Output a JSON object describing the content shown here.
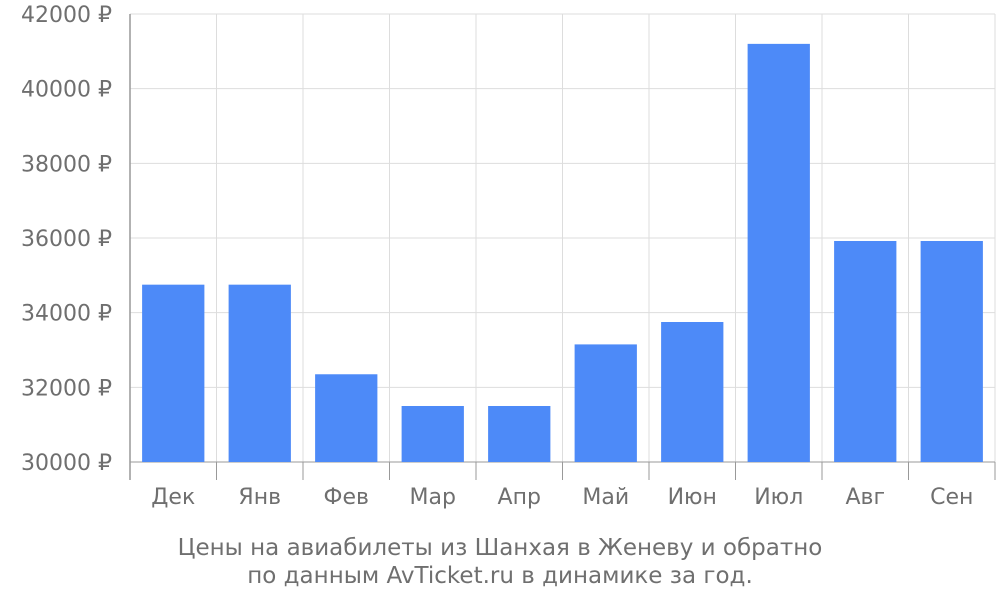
{
  "chart_data": {
    "type": "bar",
    "categories": [
      "Дек",
      "Янв",
      "Фев",
      "Мар",
      "Апр",
      "Май",
      "Июн",
      "Июл",
      "Авг",
      "Сен"
    ],
    "values": [
      34750,
      34750,
      32350,
      31500,
      31500,
      33150,
      33750,
      41200,
      35920,
      35920
    ],
    "ylim": [
      30000,
      42000
    ],
    "yticks": [
      30000,
      32000,
      34000,
      36000,
      38000,
      40000,
      42000
    ],
    "ytick_suffix": " ₽",
    "grid": true,
    "bar_color": "#4d8af8",
    "grid_color": "#dddddd",
    "axis_color": "#999999",
    "text_color": "#6f6f6f"
  },
  "caption": {
    "line1": "Цены на авиабилеты из Шанхая в Женеву и обратно",
    "line2": "по данным AvTicket.ru в динамике за год."
  }
}
